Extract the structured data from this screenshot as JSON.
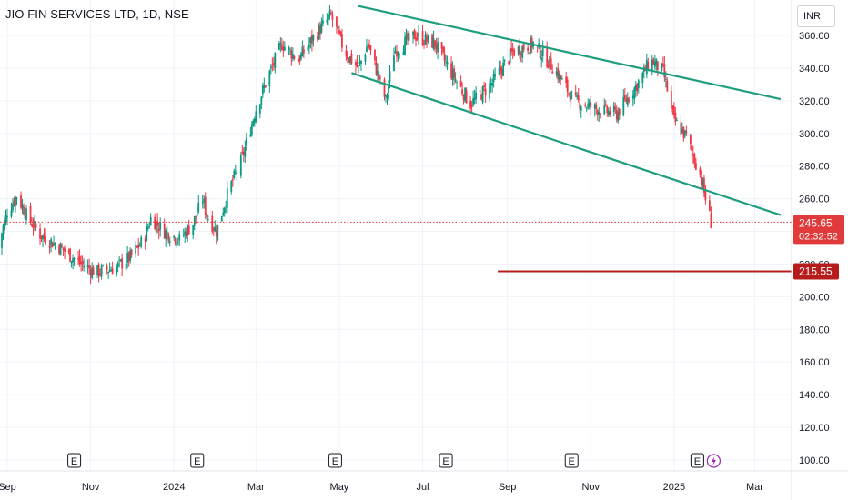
{
  "header": {
    "title": "JIO FIN SERVICES LTD, 1D, NSE"
  },
  "currency_button": {
    "label": "INR"
  },
  "last_price": {
    "value": "245.65",
    "timer": "02:32:52",
    "color": "#e03a3a"
  },
  "support_line": {
    "value": "215.55",
    "color": "#b71c1c"
  },
  "colors": {
    "up": "#089981",
    "down": "#f23645",
    "channel": "#1e9e7e",
    "grid": "#f0f3fa"
  },
  "earnings_marker": {
    "label": "E"
  },
  "earnings_months": [
    "Nov",
    "Jan",
    "May",
    "Jul",
    "Oct",
    "Jan"
  ],
  "chart_data": {
    "type": "candlestick",
    "title": "JIO FIN SERVICES LTD, 1D, NSE",
    "ylim": [
      92,
      378
    ],
    "yticks": [
      100,
      120,
      140,
      160,
      180,
      200,
      220,
      240,
      260,
      280,
      300,
      320,
      340,
      360
    ],
    "xlim": [
      "2023-09-01",
      "2025-03-20"
    ],
    "x_ticks": [
      {
        "label": "Sep",
        "date": "2023-09-01"
      },
      {
        "label": "Nov",
        "date": "2023-11-01"
      },
      {
        "label": "2024",
        "date": "2024-01-01"
      },
      {
        "label": "Mar",
        "date": "2024-03-01"
      },
      {
        "label": "May",
        "date": "2024-05-01"
      },
      {
        "label": "Jul",
        "date": "2024-07-01"
      },
      {
        "label": "Sep",
        "date": "2024-09-01"
      },
      {
        "label": "Nov",
        "date": "2024-11-01"
      },
      {
        "label": "2025",
        "date": "2025-01-01"
      },
      {
        "label": "Mar",
        "date": "2025-03-01"
      }
    ],
    "key_closes": [
      [
        "2023-08-25",
        230
      ],
      [
        "2023-09-01",
        252
      ],
      [
        "2023-09-08",
        262
      ],
      [
        "2023-09-15",
        250
      ],
      [
        "2023-09-25",
        238
      ],
      [
        "2023-10-10",
        230
      ],
      [
        "2023-10-25",
        220
      ],
      [
        "2023-11-05",
        215
      ],
      [
        "2023-11-20",
        218
      ],
      [
        "2023-12-01",
        225
      ],
      [
        "2023-12-10",
        235
      ],
      [
        "2023-12-15",
        248
      ],
      [
        "2023-12-25",
        240
      ],
      [
        "2024-01-05",
        235
      ],
      [
        "2024-01-15",
        245
      ],
      [
        "2024-01-22",
        260
      ],
      [
        "2024-01-25",
        250
      ],
      [
        "2024-02-01",
        240
      ],
      [
        "2024-02-10",
        265
      ],
      [
        "2024-02-20",
        285
      ],
      [
        "2024-03-01",
        315
      ],
      [
        "2024-03-10",
        335
      ],
      [
        "2024-03-20",
        355
      ],
      [
        "2024-04-01",
        345
      ],
      [
        "2024-04-15",
        362
      ],
      [
        "2024-04-25",
        372
      ],
      [
        "2024-05-05",
        350
      ],
      [
        "2024-05-15",
        340
      ],
      [
        "2024-05-22",
        355
      ],
      [
        "2024-06-04",
        320
      ],
      [
        "2024-06-10",
        350
      ],
      [
        "2024-06-25",
        360
      ],
      [
        "2024-07-10",
        355
      ],
      [
        "2024-07-20",
        340
      ],
      [
        "2024-08-05",
        318
      ],
      [
        "2024-08-20",
        330
      ],
      [
        "2024-09-05",
        350
      ],
      [
        "2024-09-20",
        355
      ],
      [
        "2024-10-05",
        340
      ],
      [
        "2024-10-20",
        320
      ],
      [
        "2024-11-05",
        315
      ],
      [
        "2024-11-20",
        312
      ],
      [
        "2024-12-05",
        330
      ],
      [
        "2024-12-15",
        345
      ],
      [
        "2024-12-24",
        338
      ],
      [
        "2025-01-01",
        308
      ],
      [
        "2025-01-10",
        298
      ],
      [
        "2025-01-20",
        275
      ],
      [
        "2025-01-28",
        245.65
      ]
    ],
    "channel_lines": [
      {
        "name": "",
        "from": [
          "2024-05-15",
          378
        ],
        "to": [
          "2025-03-20",
          321
        ]
      },
      {
        "name": "",
        "from": [
          "2024-05-10",
          337
        ],
        "to": [
          "2025-03-20",
          250
        ]
      }
    ],
    "horizontal_lines": [
      {
        "value": 215.55,
        "from": "2024-08-25"
      }
    ],
    "last_price_line": 245.65,
    "earnings_dates": [
      "2023-10-20",
      "2024-01-18",
      "2024-04-28",
      "2024-07-18",
      "2024-10-18",
      "2025-01-18"
    ]
  }
}
